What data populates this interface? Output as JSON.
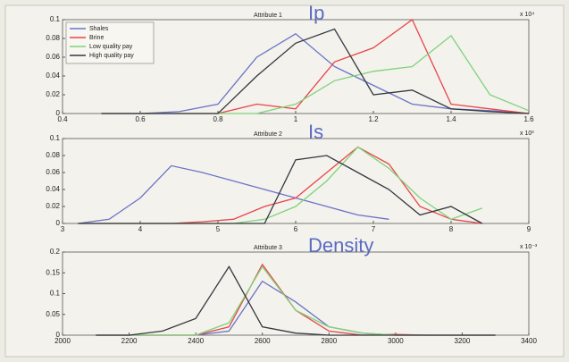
{
  "chart_data": [
    {
      "type": "line",
      "title": "Attribute 1",
      "annotation": "Ip",
      "x_exponent": "x 10⁴",
      "x": [
        0.5,
        0.6,
        0.7,
        0.8,
        0.9,
        1.0,
        1.1,
        1.2,
        1.3,
        1.4,
        1.5,
        1.6
      ],
      "xlim": [
        0.4,
        1.6
      ],
      "xticks": [
        0.4,
        0.6,
        0.8,
        1,
        1.2,
        1.4,
        1.6
      ],
      "ylim": [
        0,
        0.1
      ],
      "yticks": [
        0,
        0.02,
        0.04,
        0.06,
        0.08,
        0.1
      ],
      "series": [
        {
          "name": "Shales",
          "color": "#6a73c8",
          "values": [
            0,
            0,
            0.002,
            0.01,
            0.06,
            0.085,
            0.05,
            0.03,
            0.01,
            0.005,
            0.003,
            0
          ]
        },
        {
          "name": "Brine",
          "color": "#e8454a",
          "values": [
            0,
            0,
            0,
            0,
            0.01,
            0.005,
            0.055,
            0.07,
            0.1,
            0.01,
            0.005,
            0
          ]
        },
        {
          "name": "Low quality pay",
          "color": "#7fd27a",
          "values": [
            0,
            0,
            0,
            0,
            0,
            0.01,
            0.035,
            0.045,
            0.05,
            0.083,
            0.02,
            0.003
          ]
        },
        {
          "name": "High quality pay",
          "color": "#333840",
          "values": [
            0,
            0,
            0,
            0,
            0.04,
            0.075,
            0.09,
            0.02,
            0.025,
            0.005,
            0.002,
            0
          ]
        }
      ]
    },
    {
      "type": "line",
      "title": "Attribute 2",
      "annotation": "Is",
      "x_exponent": "x 10³",
      "x": [
        3.2,
        3.6,
        4.0,
        4.4,
        4.8,
        5.2,
        5.6,
        6.0,
        6.4,
        6.8,
        7.2,
        7.6,
        8.0,
        8.4
      ],
      "xlim": [
        3,
        9
      ],
      "xticks": [
        3,
        4,
        5,
        6,
        7,
        8,
        9
      ],
      "ylim": [
        0,
        0.1
      ],
      "yticks": [
        0,
        0.02,
        0.04,
        0.06,
        0.08,
        0.1
      ],
      "series": [
        {
          "color": "#6a73c8",
          "values": [
            0,
            0.005,
            0.03,
            0.068,
            0.06,
            0.05,
            0.04,
            0.03,
            0.02,
            0.01,
            0.005,
            null,
            null,
            null
          ]
        },
        {
          "color": "#e8454a",
          "values": [
            0,
            0,
            0,
            0,
            0.002,
            0.005,
            0.02,
            0.03,
            0.06,
            0.09,
            0.07,
            0.02,
            0.005,
            0
          ]
        },
        {
          "color": "#7fd27a",
          "values": [
            0,
            0,
            0,
            0,
            0,
            0,
            0.005,
            0.02,
            0.05,
            0.09,
            0.065,
            0.03,
            0.005,
            0.018
          ]
        },
        {
          "color": "#333840",
          "values": [
            0,
            0,
            0,
            0,
            0,
            0,
            0,
            0.075,
            0.08,
            0.06,
            0.04,
            0.01,
            0.02,
            0
          ]
        }
      ]
    },
    {
      "type": "line",
      "title": "Attribute 3",
      "annotation": "Density",
      "y_exponent": "x 10⁻³",
      "x": [
        2100,
        2200,
        2300,
        2400,
        2500,
        2600,
        2700,
        2800,
        2900,
        3000,
        3100,
        3200,
        3300
      ],
      "xlim": [
        2000,
        3400
      ],
      "xticks": [
        2000,
        2200,
        2400,
        2600,
        2800,
        3000,
        3200,
        3400
      ],
      "ylim": [
        0,
        0.2
      ],
      "yticks": [
        0,
        0.05,
        0.1,
        0.15,
        0.2
      ],
      "series": [
        {
          "color": "#6a73c8",
          "values": [
            0,
            0,
            0,
            0,
            0.01,
            0.13,
            0.08,
            0.02,
            0.005,
            0,
            0,
            0,
            0
          ]
        },
        {
          "color": "#e8454a",
          "values": [
            0,
            0,
            0,
            0,
            0.02,
            0.17,
            0.06,
            0.01,
            0,
            0.002,
            0,
            0,
            0
          ]
        },
        {
          "color": "#7fd27a",
          "values": [
            0,
            0,
            0,
            0,
            0.03,
            0.165,
            0.06,
            0.02,
            0.005,
            0,
            0,
            0,
            0
          ]
        },
        {
          "color": "#333840",
          "values": [
            0,
            0,
            0.01,
            0.04,
            0.165,
            0.02,
            0.005,
            0,
            0,
            0,
            0,
            0,
            0
          ]
        }
      ]
    }
  ]
}
